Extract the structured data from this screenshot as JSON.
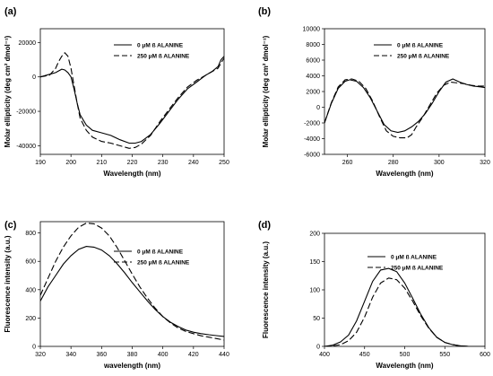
{
  "chart_data": [
    {
      "panel_label": "(a)",
      "type": "line",
      "xlabel": "Wavelength (nm)",
      "ylabel": "Molar ellipticity (deg cm² dmol⁻¹)",
      "xlim": [
        190,
        250
      ],
      "ylim": [
        -45000,
        28000
      ],
      "xticks": [
        190,
        200,
        210,
        220,
        230,
        240,
        250
      ],
      "yticks": [
        20000,
        0,
        -20000,
        -40000
      ],
      "legend_position": "top-right",
      "series": [
        {
          "name": "0 μM ß ALANINE",
          "style": "solid",
          "x": [
            190,
            193,
            195,
            197,
            198,
            199,
            200,
            201,
            202,
            203,
            205,
            207,
            210,
            213,
            216,
            219,
            221,
            223,
            226,
            229,
            232,
            235,
            238,
            241,
            244,
            246,
            248,
            249,
            250
          ],
          "y": [
            0,
            1500,
            2500,
            4500,
            4000,
            2500,
            0,
            -7000,
            -15000,
            -22000,
            -28000,
            -31000,
            -32500,
            -34000,
            -36500,
            -38500,
            -38500,
            -37500,
            -33500,
            -27000,
            -20000,
            -13000,
            -7000,
            -3000,
            1000,
            3000,
            6000,
            10000,
            12000
          ]
        },
        {
          "name": "250 μM ß ALANINE",
          "style": "dashed",
          "x": [
            190,
            193,
            195,
            196,
            197,
            198,
            199,
            200,
            201,
            202,
            203,
            205,
            207,
            210,
            213,
            216,
            219,
            221,
            223,
            226,
            229,
            232,
            235,
            238,
            241,
            244,
            246,
            248,
            250
          ],
          "y": [
            0,
            1000,
            5000,
            9000,
            12000,
            14000,
            12000,
            5000,
            -5000,
            -15000,
            -24000,
            -31000,
            -35000,
            -37500,
            -38500,
            -40000,
            -41500,
            -41000,
            -39000,
            -34000,
            -26000,
            -19000,
            -12000,
            -6000,
            -2000,
            1000,
            3000,
            5000,
            11000
          ]
        }
      ]
    },
    {
      "panel_label": "(b)",
      "type": "line",
      "xlabel": "Wavelength (nm)",
      "ylabel": "Molar ellipticity (deg cm² dmol⁻¹)",
      "xlim": [
        250,
        320
      ],
      "ylim": [
        -6000,
        10000
      ],
      "xticks": [
        260,
        280,
        300,
        320
      ],
      "yticks": [
        10000,
        8000,
        6000,
        4000,
        2000,
        0,
        -2000,
        -4000,
        -6000
      ],
      "legend_position": "top-right",
      "series": [
        {
          "name": "0 μM ß ALANINE",
          "style": "solid",
          "x": [
            250,
            253,
            256,
            259,
            261,
            264,
            267,
            270,
            273,
            276,
            279,
            282,
            285,
            288,
            291,
            294,
            297,
            300,
            303,
            306,
            309,
            312,
            315,
            318,
            320
          ],
          "y": [
            -2000,
            500,
            2400,
            3300,
            3500,
            3300,
            2500,
            1200,
            -500,
            -2200,
            -3000,
            -3200,
            -3000,
            -2500,
            -1800,
            -800,
            500,
            2000,
            3200,
            3600,
            3200,
            2900,
            2700,
            2600,
            2500
          ]
        },
        {
          "name": "250 μM ß ALANINE",
          "style": "dashed",
          "x": [
            250,
            253,
            256,
            259,
            262,
            265,
            268,
            271,
            274,
            277,
            280,
            283,
            286,
            288,
            290,
            293,
            296,
            299,
            302,
            305,
            308,
            311,
            314,
            317,
            320
          ],
          "y": [
            -2000,
            600,
            2600,
            3500,
            3600,
            3300,
            2400,
            800,
            -1200,
            -3000,
            -3700,
            -3900,
            -3900,
            -3500,
            -2500,
            -1200,
            300,
            1800,
            2800,
            3200,
            3100,
            3000,
            2800,
            2700,
            2700
          ]
        }
      ]
    },
    {
      "panel_label": "(c)",
      "type": "line",
      "xlabel": "wavelength (nm)",
      "ylabel": "Fluorescence intensity (a.u.)",
      "xlim": [
        320,
        440
      ],
      "ylim": [
        0,
        880
      ],
      "xticks": [
        320,
        340,
        360,
        380,
        400,
        420,
        440
      ],
      "yticks": [
        0,
        200,
        400,
        600,
        800
      ],
      "legend_position": "top-right",
      "series": [
        {
          "name": "0 μM ß ALANINE",
          "style": "solid",
          "x": [
            320,
            325,
            330,
            335,
            340,
            345,
            350,
            355,
            360,
            365,
            370,
            375,
            380,
            385,
            390,
            395,
            400,
            405,
            410,
            415,
            420,
            425,
            430,
            435,
            440
          ],
          "y": [
            320,
            420,
            500,
            580,
            640,
            685,
            705,
            700,
            680,
            640,
            585,
            520,
            450,
            385,
            320,
            260,
            210,
            170,
            140,
            115,
            100,
            90,
            82,
            76,
            70
          ]
        },
        {
          "name": "250 μM ß ALANINE",
          "style": "dashed",
          "x": [
            320,
            325,
            330,
            335,
            340,
            345,
            350,
            355,
            360,
            365,
            370,
            375,
            380,
            385,
            390,
            395,
            400,
            405,
            410,
            415,
            420,
            425,
            430,
            435,
            440
          ],
          "y": [
            360,
            480,
            600,
            700,
            780,
            840,
            870,
            865,
            835,
            780,
            700,
            605,
            510,
            420,
            340,
            270,
            210,
            165,
            130,
            105,
            90,
            75,
            65,
            55,
            45
          ]
        }
      ]
    },
    {
      "panel_label": "(d)",
      "type": "line",
      "xlabel": "Wavelength (nm)",
      "ylabel": "Fluorescence intensity (a.u.)",
      "xlim": [
        400,
        600
      ],
      "ylim": [
        0,
        200
      ],
      "xticks": [
        400,
        450,
        500,
        550,
        600
      ],
      "yticks": [
        0,
        50,
        100,
        150,
        200
      ],
      "legend_position": "top-right",
      "series": [
        {
          "name": "0 μM ß ALANINE",
          "style": "solid",
          "x": [
            400,
            410,
            420,
            430,
            440,
            450,
            460,
            470,
            480,
            490,
            500,
            510,
            520,
            530,
            540,
            550,
            560,
            570,
            580,
            590,
            600
          ],
          "y": [
            0,
            2,
            8,
            20,
            45,
            80,
            115,
            135,
            138,
            132,
            112,
            85,
            57,
            33,
            16,
            7,
            3,
            1,
            0,
            0,
            0
          ]
        },
        {
          "name": "250 μM ß ALANINE",
          "style": "dashed",
          "x": [
            400,
            410,
            420,
            430,
            440,
            450,
            460,
            470,
            480,
            490,
            500,
            510,
            520,
            530,
            540,
            550,
            560,
            570,
            580,
            590,
            600
          ],
          "y": [
            0,
            1,
            3,
            10,
            25,
            52,
            87,
            112,
            121,
            118,
            103,
            80,
            54,
            32,
            16,
            7,
            3,
            1,
            0,
            0,
            0
          ]
        }
      ]
    }
  ]
}
